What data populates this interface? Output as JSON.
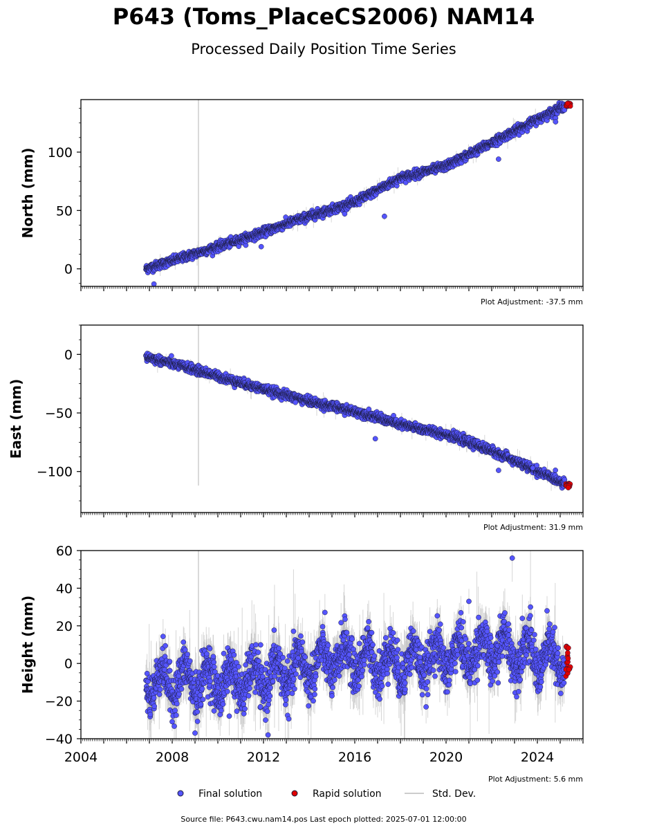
{
  "title": "P643 (Toms_PlaceCS2006) NAM14",
  "subtitle": "Processed Daily Position Time Series",
  "source_note": "Source file: P643.cwu.nam14.pos  Last epoch plotted: 2025-07-01 12:00:00",
  "legend": {
    "final": "Final solution",
    "rapid": "Rapid solution",
    "std": "Std. Dev."
  },
  "colors": {
    "final": "#5555ff",
    "rapid": "#e00000",
    "std": "#bbbbbb",
    "marker_edge": "#1a1a3a"
  },
  "chart_data": [
    {
      "type": "scatter",
      "ylabel": "North (mm)",
      "adjustment": "Plot Adjustment: -37.5 mm",
      "xlim": [
        2004,
        2026
      ],
      "ylim": [
        -15,
        145
      ],
      "yticks": [
        0,
        50,
        100
      ],
      "trend": [
        [
          2006.85,
          0
        ],
        [
          2009.0,
          13
        ],
        [
          2011.5,
          28
        ],
        [
          2013.5,
          42
        ],
        [
          2016.0,
          57
        ],
        [
          2018.0,
          78
        ],
        [
          2020.0,
          88
        ],
        [
          2022.5,
          113
        ],
        [
          2025.3,
          141
        ]
      ],
      "noise_sd": 1.8,
      "outliers": [
        [
          2007.2,
          -13
        ],
        [
          2011.9,
          19
        ],
        [
          2022.3,
          94
        ],
        [
          2024.8,
          126
        ],
        [
          2017.3,
          45
        ]
      ],
      "vline_x": 2009.15,
      "vline_range": [
        -15,
        145
      ],
      "rapid_x": [
        2025.25,
        2025.45
      ],
      "rapid_y": [
        139,
        142
      ],
      "std_scale": 2.5
    },
    {
      "type": "scatter",
      "ylabel": "East (mm)",
      "adjustment": "Plot Adjustment: 31.9 mm",
      "xlim": [
        2004,
        2026
      ],
      "ylim": [
        -135,
        25
      ],
      "yticks": [
        0,
        -50,
        -100
      ],
      "trend": [
        [
          2006.85,
          -2
        ],
        [
          2009.0,
          -13
        ],
        [
          2011.5,
          -27
        ],
        [
          2014.0,
          -40
        ],
        [
          2016.5,
          -51
        ],
        [
          2018.0,
          -60
        ],
        [
          2020.0,
          -68
        ],
        [
          2022.0,
          -82
        ],
        [
          2025.4,
          -112
        ]
      ],
      "noise_sd": 1.8,
      "outliers": [
        [
          2016.9,
          -72
        ],
        [
          2022.3,
          -99
        ],
        [
          2023.8,
          -97
        ],
        [
          2013.4,
          -41
        ]
      ],
      "vline_x": 2009.15,
      "vline_range": [
        -112,
        25
      ],
      "rapid_x": [
        2025.25,
        2025.45
      ],
      "rapid_y": [
        -114,
        -110
      ],
      "std_scale": 2.5
    },
    {
      "type": "scatter",
      "ylabel": "Height (mm)",
      "adjustment": "Plot Adjustment: 5.6 mm",
      "xlim": [
        2004,
        2026
      ],
      "ylim": [
        -40,
        60
      ],
      "yticks": [
        -40,
        -20,
        0,
        20,
        40,
        60
      ],
      "xticks": [
        2004,
        2008,
        2012,
        2016,
        2020,
        2024
      ],
      "trend": [
        [
          2006.85,
          -10
        ],
        [
          2009.0,
          -9
        ],
        [
          2011.5,
          -9
        ],
        [
          2013.5,
          -3
        ],
        [
          2015.5,
          3
        ],
        [
          2018.0,
          0
        ],
        [
          2020.0,
          4
        ],
        [
          2022.5,
          8
        ],
        [
          2025.3,
          0
        ]
      ],
      "seasonal_amp": 8,
      "noise_sd": 6,
      "outliers": [
        [
          2009.0,
          -37
        ],
        [
          2012.2,
          -38
        ],
        [
          2022.9,
          56
        ],
        [
          2021.0,
          33
        ],
        [
          2023.7,
          30
        ],
        [
          2010.5,
          -28
        ]
      ],
      "vline_x": 2009.15,
      "vline_range": [
        -40,
        60
      ],
      "rapid_x": [
        2025.25,
        2025.45
      ],
      "rapid_y": [
        -7,
        12
      ],
      "std_scale": 10
    }
  ]
}
